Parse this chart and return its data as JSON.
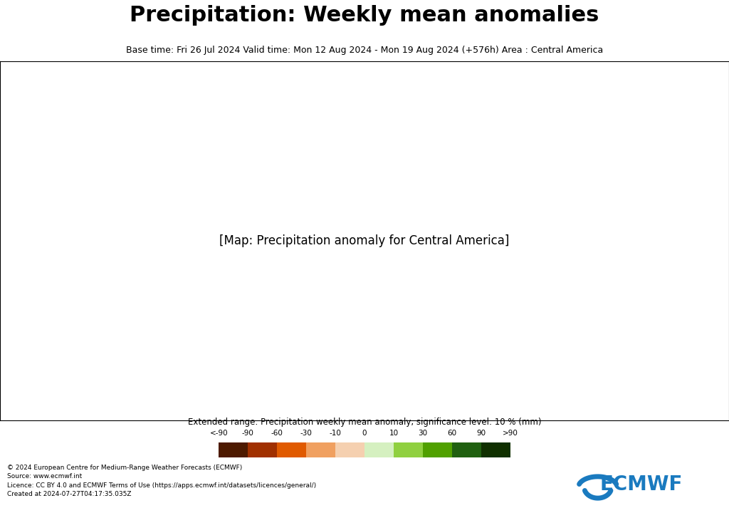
{
  "title": "Precipitation: Weekly mean anomalies",
  "subtitle": "Base time: Fri 26 Jul 2024 Valid time: Mon 12 Aug 2024 - Mon 19 Aug 2024 (+576h) Area : Central America",
  "colorbar_label": "Extended range: Precipitation weekly mean anomaly, significance level: 10 % (mm)",
  "colorbar_ticks": [
    "<-90",
    "-90",
    "-60",
    "-30",
    "-10",
    "0",
    "10",
    "30",
    "60",
    "90",
    ">90"
  ],
  "colorbar_colors": [
    "#4d1a00",
    "#a03000",
    "#e05a00",
    "#f0a060",
    "#f5d0b0",
    "#d5f0c0",
    "#90d040",
    "#50a000",
    "#206010",
    "#103000"
  ],
  "copyright_text": "© 2024 European Centre for Medium-Range Weather Forecasts (ECMWF)\nSource: www.ecmwf.int\nLicence: CC BY 4.0 and ECMWF Terms of Use (https://apps.ecmwf.int/datasets/licences/general/)\nCreated at 2024-07-27T04:17:35.035Z",
  "map_background": "#ffffff",
  "title_fontsize": 22,
  "subtitle_fontsize": 9,
  "ecmwf_color": "#0066aa"
}
